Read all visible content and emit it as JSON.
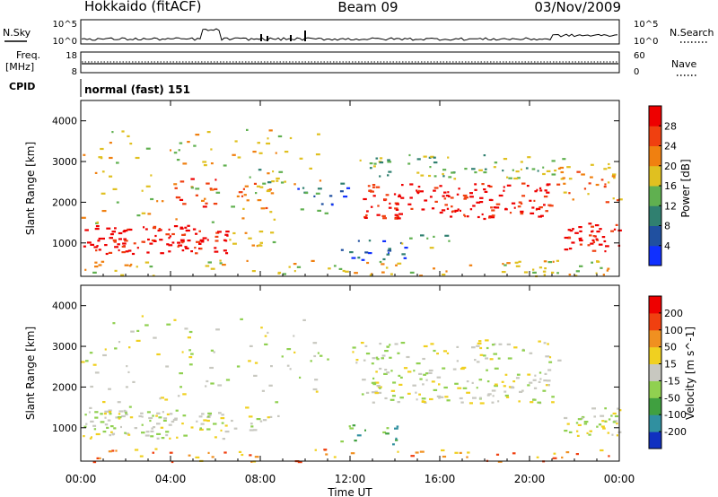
{
  "header": {
    "left_title": "Hokkaido (fitACF)",
    "center_title": "Beam 09",
    "right_title": "03/Nov/2009"
  },
  "nsky_panel": {
    "label": "N.Sky",
    "right_label": "N.Search",
    "ticks_left": [
      "10^5",
      "10^0"
    ],
    "ticks_right": [
      "10^5",
      "10^0"
    ]
  },
  "freq_panel": {
    "label_top": "Freq.",
    "label_unit": "[MHz]",
    "ticks_left": [
      "18",
      "8"
    ],
    "ticks_right": [
      "60",
      "0"
    ],
    "right_label": "Nave"
  },
  "cpid_panel": {
    "label": "CPID",
    "text": "normal (fast) 151"
  },
  "x_axis": {
    "label": "Time UT",
    "ticks": [
      "00:00",
      "04:00",
      "08:00",
      "12:00",
      "16:00",
      "20:00",
      "00:00"
    ]
  },
  "chart_data": [
    {
      "type": "heatmap",
      "name": "power",
      "ylabel": "Slant Range [km]",
      "yticks": [
        "1000",
        "2000",
        "3000",
        "4000"
      ],
      "ylim": [
        180,
        4500
      ],
      "xlim_hours": [
        0,
        24
      ],
      "colorbar": {
        "label": "Power [dB]",
        "ticks": [
          "4",
          "8",
          "12",
          "16",
          "20",
          "24",
          "28"
        ],
        "colors": [
          "#1030ff",
          "#2050a0",
          "#308070",
          "#60b050",
          "#e0c020",
          "#f08010",
          "#f04010",
          "#ee0000"
        ]
      },
      "regions": [
        {
          "t": [
            0.0,
            6.6
          ],
          "r": [
            750,
            1450
          ],
          "level": 7,
          "density": 0.9
        },
        {
          "t": [
            6.6,
            8.9
          ],
          "r": [
            950,
            1350
          ],
          "level": 4,
          "density": 0.55
        },
        {
          "t": [
            3.8,
            6.0
          ],
          "r": [
            1900,
            2600
          ],
          "level": 6,
          "density": 0.45
        },
        {
          "t": [
            6.8,
            8.5
          ],
          "r": [
            1800,
            2500
          ],
          "level": 5,
          "density": 0.45
        },
        {
          "t": [
            7.5,
            9.0
          ],
          "r": [
            2400,
            2900
          ],
          "level": 3,
          "density": 0.5
        },
        {
          "t": [
            12.5,
            21.0
          ],
          "r": [
            1600,
            2500
          ],
          "level": 7,
          "density": 0.7
        },
        {
          "t": [
            12.0,
            21.5
          ],
          "r": [
            2600,
            3200
          ],
          "level": 3,
          "density": 0.4
        },
        {
          "t": [
            9.5,
            12.0
          ],
          "r": [
            1900,
            2500
          ],
          "level": 1,
          "density": 0.3
        },
        {
          "t": [
            11.5,
            14.5
          ],
          "r": [
            600,
            1100
          ],
          "level": 1,
          "density": 0.45
        },
        {
          "t": [
            14.0,
            16.5
          ],
          "r": [
            900,
            1250
          ],
          "level": 3,
          "density": 0.3
        },
        {
          "t": [
            21.5,
            24.0
          ],
          "r": [
            800,
            1500
          ],
          "level": 7,
          "density": 0.85
        },
        {
          "t": [
            21.0,
            24.0
          ],
          "r": [
            2000,
            3000
          ],
          "level": 5,
          "density": 0.4
        },
        {
          "t": [
            0.0,
            11.0
          ],
          "r": [
            1500,
            3800
          ],
          "level": 4,
          "density": 0.12
        },
        {
          "t": [
            0.0,
            24.0
          ],
          "r": [
            180,
            600
          ],
          "level": 4,
          "density": 0.3
        }
      ]
    },
    {
      "type": "heatmap",
      "name": "velocity",
      "ylabel": "Slant Range [km]",
      "yticks": [
        "1000",
        "2000",
        "3000",
        "4000"
      ],
      "ylim": [
        180,
        4500
      ],
      "xlim_hours": [
        0,
        24
      ],
      "colorbar": {
        "label": "Velocity [m s^-1]",
        "ticks": [
          "200",
          "100",
          "50",
          "15",
          "-15",
          "-50",
          "-100",
          "-200"
        ],
        "colors": [
          "#1030c0",
          "#3090a0",
          "#40a040",
          "#90d050",
          "#c8c8c0",
          "#f0d020",
          "#f09020",
          "#f04010",
          "#ee0000"
        ]
      },
      "regions": [
        {
          "t": [
            0.0,
            6.6
          ],
          "r": [
            750,
            1450
          ],
          "level": 4,
          "density": 0.85
        },
        {
          "t": [
            6.6,
            8.9
          ],
          "r": [
            950,
            1350
          ],
          "level": 4,
          "density": 0.5
        },
        {
          "t": [
            12.5,
            21.0
          ],
          "r": [
            1600,
            2500
          ],
          "level": 4,
          "density": 0.6
        },
        {
          "t": [
            12.0,
            21.5
          ],
          "r": [
            2600,
            3200
          ],
          "level": 4,
          "density": 0.4
        },
        {
          "t": [
            11.5,
            14.5
          ],
          "r": [
            600,
            1100
          ],
          "level": 2,
          "density": 0.35
        },
        {
          "t": [
            21.5,
            24.0
          ],
          "r": [
            800,
            1500
          ],
          "level": 4,
          "density": 0.8
        },
        {
          "t": [
            0.0,
            11.0
          ],
          "r": [
            1500,
            3800
          ],
          "level": 4,
          "density": 0.12
        },
        {
          "t": [
            0.0,
            24.0
          ],
          "r": [
            180,
            500
          ],
          "level": 6,
          "density": 0.25
        }
      ]
    }
  ]
}
